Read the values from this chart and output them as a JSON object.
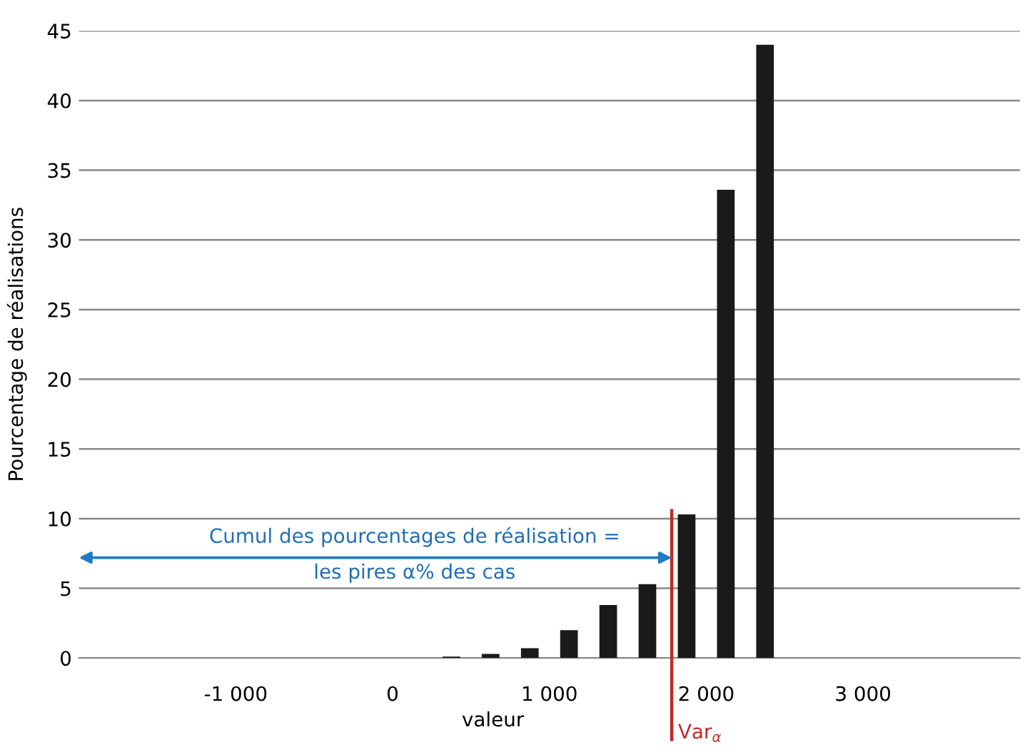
{
  "chart_data": {
    "type": "histogram",
    "xlabel": "valeur",
    "ylabel": "Pourcentage de réalisations",
    "bins": [
      250,
      500,
      750,
      1000,
      1250,
      1500,
      1750,
      2000,
      2250,
      2500
    ],
    "values": [
      0.1,
      0.3,
      0.7,
      2.0,
      3.8,
      5.3,
      10.3,
      33.6,
      44.0
    ],
    "color": "#1a1a1a",
    "xlim": [
      -2000,
      4000
    ],
    "xticks": [
      {
        "value": -1000,
        "label": "-1 000"
      },
      0,
      {
        "value": 1000,
        "label": "1 000"
      },
      {
        "value": 2000,
        "label": "2 000"
      },
      {
        "value": 3000,
        "label": "3 000"
      }
    ],
    "ylim": [
      0,
      45
    ],
    "yticks": [
      0,
      5,
      10,
      15,
      20,
      25,
      30,
      35,
      40,
      45
    ],
    "grid": "y",
    "ref_lines": [
      {
        "axis": "x",
        "value": 1780,
        "label": "Var$_{α}$",
        "color": "#c62828"
      }
    ],
    "annotations": [
      "Cumul des pourcentages de réalisation =\nles pires α% des cas"
    ]
  }
}
